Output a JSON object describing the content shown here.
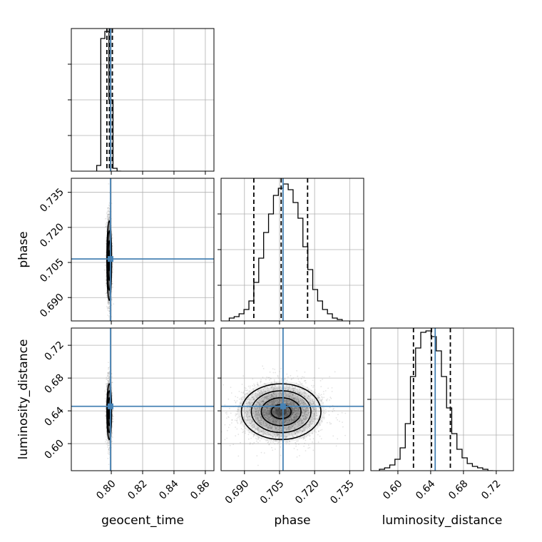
{
  "chart_data": {
    "type": "corner",
    "parameters": [
      "geocent_time",
      "phase",
      "luminosity_distance"
    ],
    "axis_labels": [
      "geocent_time",
      "phase",
      "luminosity_distance"
    ],
    "truth_color": "#4682b4",
    "ranges": {
      "geocent_time": [
        0.7745,
        0.8655
      ],
      "phase": [
        0.68,
        0.741
      ],
      "luminosity_distance": [
        0.567,
        0.741
      ]
    },
    "ticks": {
      "geocent_time": [
        0.8,
        0.82,
        0.84,
        0.86
      ],
      "phase": [
        0.69,
        0.705,
        0.72,
        0.735
      ],
      "luminosity_distance": [
        0.6,
        0.64,
        0.68,
        0.72
      ]
    },
    "tick_labels": {
      "geocent_time": [
        "0.80",
        "0.82",
        "0.84",
        "0.86"
      ],
      "phase": [
        "0.690",
        "0.705",
        "0.720",
        "0.735"
      ],
      "luminosity_distance": [
        "0.60",
        "0.64",
        "0.68",
        "0.72"
      ]
    },
    "truths": {
      "geocent_time": 0.7995,
      "phase": 0.7065,
      "luminosity_distance": 0.6455
    },
    "quantiles": {
      "geocent_time": [
        0.7972,
        0.7988,
        0.8007
      ],
      "phase": [
        0.694,
        0.7057,
        0.717
      ],
      "luminosity_distance": [
        0.619,
        0.641,
        0.664
      ]
    },
    "histograms": {
      "geocent_time": {
        "bin_edges": [
          0.7907,
          0.7933,
          0.7959,
          0.7985,
          0.8011,
          0.8037,
          0.8063
        ],
        "counts": [
          0.04,
          0.93,
          0.98,
          0.5,
          0.02,
          0.0
        ]
      },
      "phase": {
        "bin_edges": [
          0.6835,
          0.6856,
          0.6877,
          0.6898,
          0.6919,
          0.694,
          0.6961,
          0.6982,
          0.7003,
          0.7024,
          0.7045,
          0.7066,
          0.7087,
          0.7108,
          0.7129,
          0.715,
          0.7171,
          0.7192,
          0.7213,
          0.7234,
          0.7255,
          0.7276,
          0.7297,
          0.7318
        ],
        "counts": [
          0.02,
          0.03,
          0.05,
          0.08,
          0.14,
          0.27,
          0.44,
          0.62,
          0.75,
          0.88,
          0.93,
          0.96,
          0.92,
          0.83,
          0.72,
          0.52,
          0.36,
          0.22,
          0.14,
          0.08,
          0.05,
          0.02,
          0.01
        ]
      },
      "luminosity_distance": {
        "bin_edges": [
          0.5775,
          0.5838,
          0.5901,
          0.5964,
          0.6027,
          0.609,
          0.6153,
          0.6216,
          0.6279,
          0.6342,
          0.6405,
          0.6468,
          0.6531,
          0.6594,
          0.6657,
          0.672,
          0.6783,
          0.6846,
          0.6909,
          0.6972,
          0.7035,
          0.7098,
          0.7161
        ],
        "counts": [
          0.01,
          0.02,
          0.04,
          0.08,
          0.16,
          0.33,
          0.66,
          0.86,
          0.97,
          0.98,
          0.94,
          0.84,
          0.66,
          0.44,
          0.26,
          0.15,
          0.09,
          0.05,
          0.03,
          0.02,
          0.01,
          0.0
        ]
      }
    },
    "contour_levels": [
      0.118,
      0.393,
      0.675,
      0.865
    ],
    "stats2d": {
      "geocent_time|phase": {
        "mu": [
          0.7987,
          0.7058
        ],
        "sigma": [
          0.00075,
          0.0085
        ]
      },
      "geocent_time|luminosity_distance": {
        "mu": [
          0.7987,
          0.639
        ],
        "sigma": [
          0.00075,
          0.017
        ]
      },
      "phase|luminosity_distance": {
        "mu": [
          0.7057,
          0.639
        ],
        "sigma": [
          0.0085,
          0.017
        ]
      }
    }
  }
}
